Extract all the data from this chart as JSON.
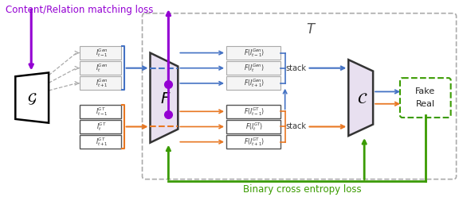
{
  "colors": {
    "purple": "#9400D3",
    "blue": "#4472C4",
    "orange": "#E87722",
    "green": "#3A9B00",
    "gray": "#AAAAAA",
    "box_fill": "#E8E0F0",
    "white": "#FFFFFF",
    "black": "#111111",
    "outline": "#444444"
  },
  "labels": {
    "G": "$\\mathcal{G}$",
    "F": "$F$",
    "C": "$\\mathcal{C}$",
    "T": "$T$",
    "title_loss": "Content/Relation matching loss",
    "binary_loss": "Binary cross entropy loss",
    "fake": "Fake",
    "real": "Real",
    "stack": "stack",
    "gen_frames": [
      "$I_{t-1}^{Gen}$",
      "$I_t^{Gen}$",
      "$I_{t+1}^{Gen}$"
    ],
    "gt_frames": [
      "$I_{t-1}^{GT}$",
      "$I_t^{GT}$",
      "$I_{t+1}^{GT}$"
    ],
    "gen_features": [
      "$F(I_{t-1}^{Gen})$",
      "$F(I_t^{Gen})$",
      "$F(I_{t+1}^{Gen})$"
    ],
    "gt_features": [
      "$F(I_{t-1}^{GT})$",
      "$F(I_t^{GT})$",
      "$F(I_{t+1}^{GT})$"
    ]
  }
}
